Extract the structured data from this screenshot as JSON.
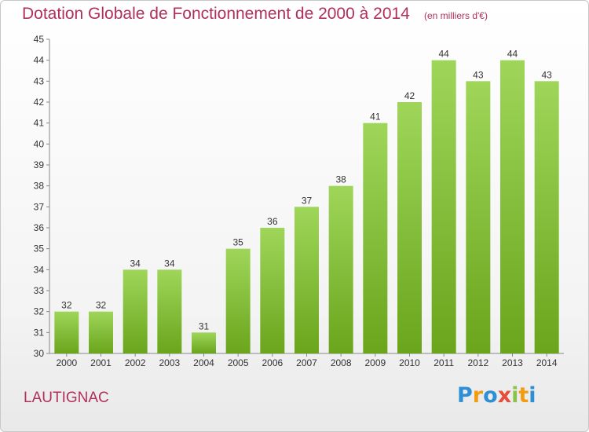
{
  "chart_data": {
    "type": "bar",
    "title": "Dotation Globale de Fonctionnement de 2000 à 2014",
    "subtitle": "(en milliers d'€)",
    "categories": [
      "2000",
      "2001",
      "2002",
      "2003",
      "2004",
      "2005",
      "2006",
      "2007",
      "2008",
      "2009",
      "2010",
      "2011",
      "2012",
      "2013",
      "2014"
    ],
    "values": [
      32,
      32,
      34,
      34,
      31,
      35,
      36,
      37,
      38,
      41,
      42,
      44,
      43,
      44,
      43
    ],
    "ylim": [
      30,
      45
    ],
    "yticks": [
      30,
      31,
      32,
      33,
      34,
      35,
      36,
      37,
      38,
      39,
      40,
      41,
      42,
      43,
      44,
      45
    ],
    "grid": false,
    "colors": {
      "bar_light": "#9fd65a",
      "bar_dark": "#6aa51c",
      "title": "#b0305a"
    }
  },
  "footer": {
    "place": "LAUTIGNAC",
    "logo": [
      "P",
      "r",
      "o",
      "x",
      "i",
      "t",
      "i"
    ],
    "logo_colors": [
      "#2d8fd6",
      "#f39c12",
      "#2d8fd6",
      "#e74c3c",
      "#8bc34a",
      "#f39c12",
      "#2d8fd6"
    ]
  }
}
